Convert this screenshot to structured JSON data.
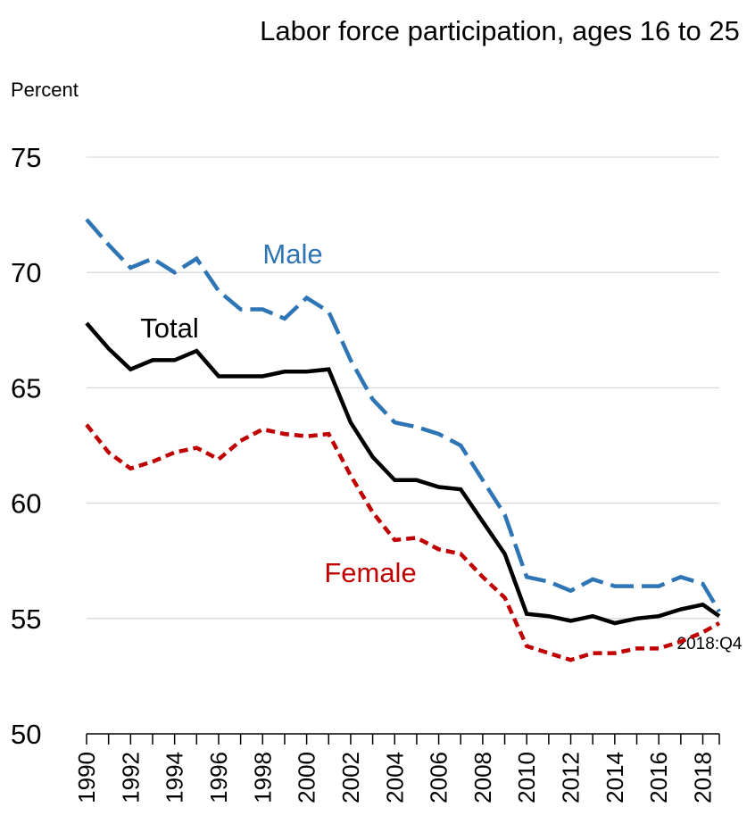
{
  "chart_data": {
    "type": "line",
    "title": "Labor force participation, ages 16 to 25",
    "y_label": "Percent",
    "annotation": "2018:Q4",
    "x": [
      1990,
      1991,
      1992,
      1993,
      1994,
      1995,
      1996,
      1997,
      1998,
      1999,
      2000,
      2001,
      2002,
      2003,
      2004,
      2005,
      2006,
      2007,
      2008,
      2009,
      2010,
      2011,
      2012,
      2013,
      2014,
      2015,
      2016,
      2017,
      2018,
      2018.75
    ],
    "series": [
      {
        "name": "Male",
        "color": "#2e75b6",
        "dash": "long",
        "values": [
          72.3,
          71.2,
          70.2,
          70.6,
          70.0,
          70.6,
          69.2,
          68.4,
          68.4,
          68.0,
          68.9,
          68.3,
          66.2,
          64.5,
          63.5,
          63.3,
          63.0,
          62.5,
          61.0,
          59.5,
          56.8,
          56.6,
          56.2,
          56.7,
          56.4,
          56.4,
          56.4,
          56.8,
          56.5,
          55.3
        ]
      },
      {
        "name": "Total",
        "color": "#000000",
        "dash": "solid",
        "values": [
          67.8,
          66.7,
          65.8,
          66.2,
          66.2,
          66.6,
          65.5,
          65.5,
          65.5,
          65.7,
          65.7,
          65.8,
          63.5,
          62.0,
          61.0,
          61.0,
          60.7,
          60.6,
          59.2,
          57.8,
          55.2,
          55.1,
          54.9,
          55.1,
          54.8,
          55.0,
          55.1,
          55.4,
          55.6,
          55.1
        ]
      },
      {
        "name": "Female",
        "color": "#c00000",
        "dash": "short",
        "values": [
          63.4,
          62.2,
          61.5,
          61.8,
          62.2,
          62.4,
          61.9,
          62.7,
          63.2,
          63.0,
          62.9,
          63.0,
          61.2,
          59.6,
          58.4,
          58.5,
          58.0,
          57.8,
          56.8,
          55.9,
          53.8,
          53.5,
          53.2,
          53.5,
          53.5,
          53.7,
          53.7,
          54.0,
          54.4,
          54.8
        ]
      }
    ],
    "xlim": [
      1990,
      2018.75
    ],
    "xticks": [
      1990,
      1992,
      1994,
      1996,
      1998,
      2000,
      2002,
      2004,
      2006,
      2008,
      2010,
      2012,
      2014,
      2016,
      2018
    ],
    "xminor_ticks": [
      1991,
      1993,
      1995,
      1997,
      1999,
      2001,
      2003,
      2005,
      2007,
      2009,
      2011,
      2013,
      2015,
      2017
    ],
    "ylim": [
      50,
      75
    ],
    "yticks": [
      50,
      55,
      60,
      65,
      70,
      75
    ],
    "grid": true
  }
}
